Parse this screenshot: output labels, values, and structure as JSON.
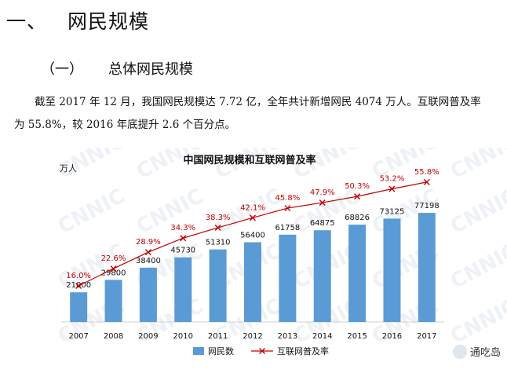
{
  "heading1": {
    "number": "一、",
    "text": "网民规模"
  },
  "heading2": {
    "number": "（一）",
    "text": "总体网民规模"
  },
  "paragraph": "截至 2017 年 12 月，我国网民规模达 7.72 亿，全年共计新增网民 4074 万人。互联网普及率为 55.8%，较 2016 年底提升 2.6 个百分点。",
  "chart_data": {
    "type": "bar",
    "title": "中国网民规模和互联网普及率",
    "ylabel": "万人",
    "watermark": "CNNIC",
    "categories": [
      "2007",
      "2008",
      "2009",
      "2010",
      "2011",
      "2012",
      "2013",
      "2014",
      "2015",
      "2016",
      "2017"
    ],
    "series": [
      {
        "name": "网民数",
        "type": "bar",
        "color": "#5b9bd5",
        "values": [
          21000,
          29800,
          38400,
          45730,
          51310,
          56400,
          61758,
          64875,
          68826,
          73125,
          77198
        ]
      },
      {
        "name": "互联网普及率",
        "type": "line",
        "color": "#c00000",
        "values": [
          16.0,
          22.6,
          28.9,
          34.3,
          38.3,
          42.1,
          45.8,
          47.9,
          50.3,
          53.2,
          55.8
        ],
        "labels": [
          "16.0%",
          "22.6%",
          "28.9%",
          "34.3%",
          "38.3%",
          "42.1%",
          "45.8%",
          "47.9%",
          "50.3%",
          "53.2%",
          "55.8%"
        ]
      }
    ],
    "legend": "bottom"
  },
  "logo": {
    "text": "通吃岛",
    "icon": "wechat-bubble-icon"
  }
}
